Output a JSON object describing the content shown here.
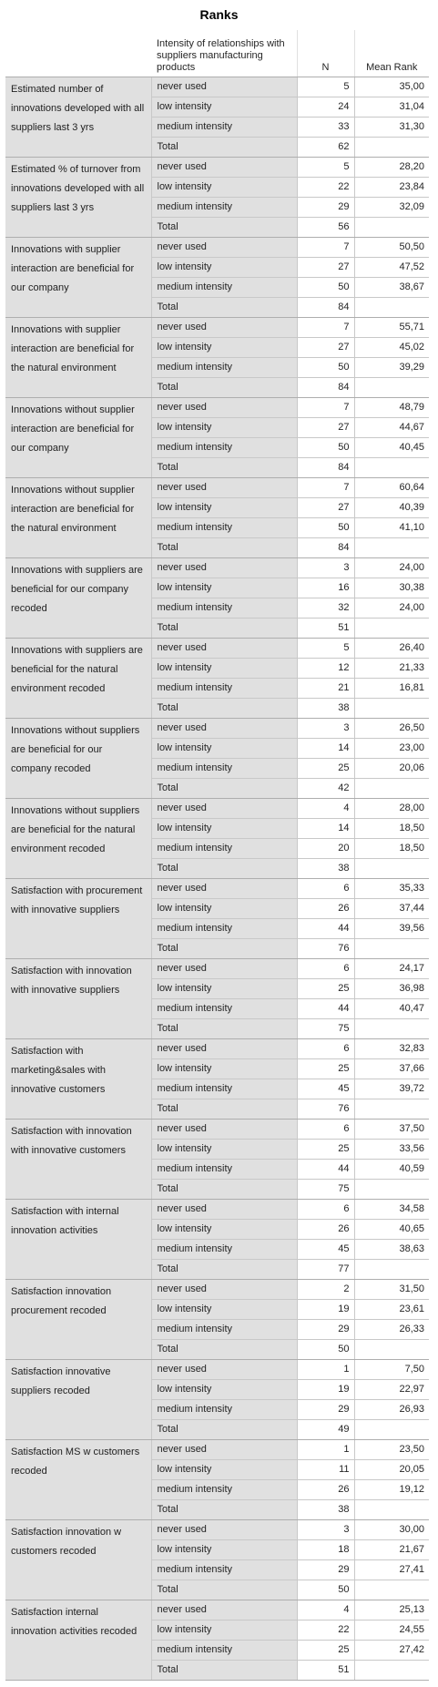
{
  "title": "Ranks",
  "headers": {
    "category": "Intensity of relationships with suppliers manufacturing products",
    "n": "N",
    "mean_rank": "Mean Rank"
  },
  "groups": [
    {
      "label": "Estimated number of innovations developed with all suppliers last 3 yrs",
      "rows": [
        [
          "never used",
          "5",
          "35,00"
        ],
        [
          "low intensity",
          "24",
          "31,04"
        ],
        [
          "medium intensity",
          "33",
          "31,30"
        ],
        [
          "Total",
          "62",
          ""
        ]
      ]
    },
    {
      "label": "Estimated % of turnover from innovations developed with all suppliers last 3 yrs",
      "rows": [
        [
          "never used",
          "5",
          "28,20"
        ],
        [
          "low intensity",
          "22",
          "23,84"
        ],
        [
          "medium intensity",
          "29",
          "32,09"
        ],
        [
          "Total",
          "56",
          ""
        ]
      ]
    },
    {
      "label": "Innovations with supplier interaction are beneficial for our company",
      "rows": [
        [
          "never used",
          "7",
          "50,50"
        ],
        [
          "low intensity",
          "27",
          "47,52"
        ],
        [
          "medium intensity",
          "50",
          "38,67"
        ],
        [
          "Total",
          "84",
          ""
        ]
      ]
    },
    {
      "label": "Innovations with supplier interaction are beneficial for the natural environment",
      "rows": [
        [
          "never used",
          "7",
          "55,71"
        ],
        [
          "low intensity",
          "27",
          "45,02"
        ],
        [
          "medium intensity",
          "50",
          "39,29"
        ],
        [
          "Total",
          "84",
          ""
        ]
      ]
    },
    {
      "label": "Innovations without supplier interaction are beneficial for our company",
      "rows": [
        [
          "never used",
          "7",
          "48,79"
        ],
        [
          "low intensity",
          "27",
          "44,67"
        ],
        [
          "medium intensity",
          "50",
          "40,45"
        ],
        [
          "Total",
          "84",
          ""
        ]
      ]
    },
    {
      "label": "Innovations without supplier interaction are beneficial for the natural environment",
      "rows": [
        [
          "never used",
          "7",
          "60,64"
        ],
        [
          "low intensity",
          "27",
          "40,39"
        ],
        [
          "medium intensity",
          "50",
          "41,10"
        ],
        [
          "Total",
          "84",
          ""
        ]
      ]
    },
    {
      "label": "Innovations with suppliers are beneficial for our company recoded",
      "rows": [
        [
          "never used",
          "3",
          "24,00"
        ],
        [
          "low intensity",
          "16",
          "30,38"
        ],
        [
          "medium intensity",
          "32",
          "24,00"
        ],
        [
          "Total",
          "51",
          ""
        ]
      ]
    },
    {
      "label": "Innovations with suppliers are beneficial for the natural environment recoded",
      "rows": [
        [
          "never used",
          "5",
          "26,40"
        ],
        [
          "low intensity",
          "12",
          "21,33"
        ],
        [
          "medium intensity",
          "21",
          "16,81"
        ],
        [
          "Total",
          "38",
          ""
        ]
      ]
    },
    {
      "label": "Innovations without suppliers are beneficial for our company recoded",
      "rows": [
        [
          "never used",
          "3",
          "26,50"
        ],
        [
          "low intensity",
          "14",
          "23,00"
        ],
        [
          "medium intensity",
          "25",
          "20,06"
        ],
        [
          "Total",
          "42",
          ""
        ]
      ]
    },
    {
      "label": "Innovations without suppliers are beneficial for the natural environment recoded",
      "rows": [
        [
          "never used",
          "4",
          "28,00"
        ],
        [
          "low intensity",
          "14",
          "18,50"
        ],
        [
          "medium intensity",
          "20",
          "18,50"
        ],
        [
          "Total",
          "38",
          ""
        ]
      ]
    },
    {
      "label": "Satisfaction with procurement with innovative suppliers",
      "rows": [
        [
          "never used",
          "6",
          "35,33"
        ],
        [
          "low intensity",
          "26",
          "37,44"
        ],
        [
          "medium intensity",
          "44",
          "39,56"
        ],
        [
          "Total",
          "76",
          ""
        ]
      ]
    },
    {
      "label": "Satisfaction with innovation with innovative suppliers",
      "rows": [
        [
          "never used",
          "6",
          "24,17"
        ],
        [
          "low intensity",
          "25",
          "36,98"
        ],
        [
          "medium intensity",
          "44",
          "40,47"
        ],
        [
          "Total",
          "75",
          ""
        ]
      ]
    },
    {
      "label": "Satisfaction with marketing&sales with innovative customers",
      "rows": [
        [
          "never used",
          "6",
          "32,83"
        ],
        [
          "low intensity",
          "25",
          "37,66"
        ],
        [
          "medium intensity",
          "45",
          "39,72"
        ],
        [
          "Total",
          "76",
          ""
        ]
      ]
    },
    {
      "label": "Satisfaction with innovation with innovative customers",
      "rows": [
        [
          "never used",
          "6",
          "37,50"
        ],
        [
          "low intensity",
          "25",
          "33,56"
        ],
        [
          "medium intensity",
          "44",
          "40,59"
        ],
        [
          "Total",
          "75",
          ""
        ]
      ]
    },
    {
      "label": "Satisfaction with internal innovation activities",
      "rows": [
        [
          "never used",
          "6",
          "34,58"
        ],
        [
          "low intensity",
          "26",
          "40,65"
        ],
        [
          "medium intensity",
          "45",
          "38,63"
        ],
        [
          "Total",
          "77",
          ""
        ]
      ]
    },
    {
      "label": "Satisfaction innovation procurement recoded",
      "rows": [
        [
          "never used",
          "2",
          "31,50"
        ],
        [
          "low intensity",
          "19",
          "23,61"
        ],
        [
          "medium intensity",
          "29",
          "26,33"
        ],
        [
          "Total",
          "50",
          ""
        ]
      ]
    },
    {
      "label": "Satisfaction innovative suppliers recoded",
      "rows": [
        [
          "never used",
          "1",
          "7,50"
        ],
        [
          "low intensity",
          "19",
          "22,97"
        ],
        [
          "medium intensity",
          "29",
          "26,93"
        ],
        [
          "Total",
          "49",
          ""
        ]
      ]
    },
    {
      "label": "Satisfaction MS w customers recoded",
      "rows": [
        [
          "never used",
          "1",
          "23,50"
        ],
        [
          "low intensity",
          "11",
          "20,05"
        ],
        [
          "medium intensity",
          "26",
          "19,12"
        ],
        [
          "Total",
          "38",
          ""
        ]
      ]
    },
    {
      "label": "Satisfaction innovation w customers recoded",
      "rows": [
        [
          "never used",
          "3",
          "30,00"
        ],
        [
          "low intensity",
          "18",
          "21,67"
        ],
        [
          "medium intensity",
          "29",
          "27,41"
        ],
        [
          "Total",
          "50",
          ""
        ]
      ]
    },
    {
      "label": "Satisfaction internal innovation activities recoded",
      "rows": [
        [
          "never used",
          "4",
          "25,13"
        ],
        [
          "low intensity",
          "22",
          "24,55"
        ],
        [
          "medium intensity",
          "25",
          "27,42"
        ],
        [
          "Total",
          "51",
          ""
        ]
      ]
    }
  ]
}
